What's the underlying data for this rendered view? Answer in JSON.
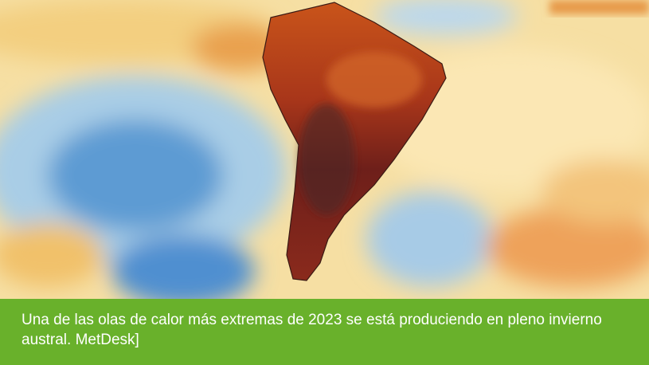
{
  "caption": "Una de las olas de calor más extremas de 2023 se está produciendo en pleno invierno austral. MetDesk]"
}
